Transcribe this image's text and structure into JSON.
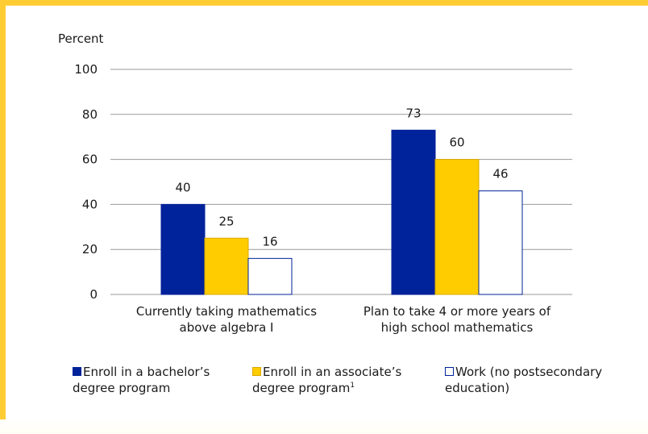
{
  "colors": {
    "accent_bar": "#ffcc33",
    "bachelor": "#00229a",
    "associate": "#ffcc00",
    "work_fill": "#ffffff",
    "work_border": "#00229a",
    "gridline": "#9a9a9a",
    "text": "#1a1a1a"
  },
  "chart_data": {
    "type": "bar",
    "ylabel": "Percent",
    "ylim": [
      0,
      100
    ],
    "yticks": [
      0,
      20,
      40,
      60,
      80,
      100
    ],
    "categories": [
      [
        "Currently taking mathematics",
        "above algebra I"
      ],
      [
        "Plan to take 4 or more years of",
        "high school mathematics"
      ]
    ],
    "series": [
      {
        "name": "Enroll in a bachelor’s degree program",
        "values": [
          40,
          73
        ]
      },
      {
        "name": "Enroll in an associate’s degree program¹",
        "values": [
          25,
          60
        ]
      },
      {
        "name": "Work (no postsecondary education)",
        "values": [
          16,
          46
        ]
      }
    ],
    "grid": true,
    "legend_position": "bottom"
  },
  "legend": [
    {
      "line1": "Enroll in a bachelor’s",
      "line2": "degree program",
      "sup": ""
    },
    {
      "line1": "Enroll in an associate’s",
      "line2": "degree program",
      "sup": "1"
    },
    {
      "line1": "Work (no postsecondary",
      "line2": "education)",
      "sup": ""
    }
  ]
}
